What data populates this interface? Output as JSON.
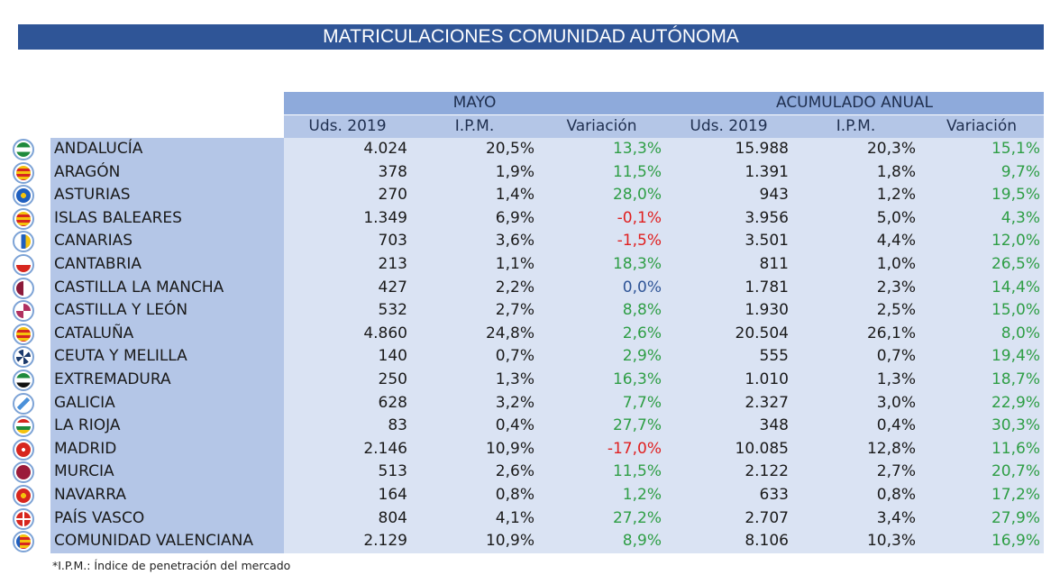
{
  "title": "MATRICULACIONES COMUNIDAD AUTÓNOMA",
  "groups": {
    "month": "MAYO",
    "annual": "ACUMULADO ANUAL"
  },
  "columns": [
    "Uds. 2019",
    "I.P.M.",
    "Variación",
    "Uds. 2019",
    "I.P.M.",
    "Variación"
  ],
  "colors": {
    "title_bg": "#2f5597",
    "positive": "#2e9e45",
    "negative": "#e02020",
    "neutral": "#2f5597"
  },
  "rows": [
    {
      "name": "ANDALUCÍA",
      "flag": "andalucia-flag-icon",
      "m_uds": "4.024",
      "m_ipm": "20,5%",
      "m_var": "13,3%",
      "a_uds": "15.988",
      "a_ipm": "20,3%",
      "a_var": "15,1%"
    },
    {
      "name": "ARAGÓN",
      "flag": "aragon-flag-icon",
      "m_uds": "378",
      "m_ipm": "1,9%",
      "m_var": "11,5%",
      "a_uds": "1.391",
      "a_ipm": "1,8%",
      "a_var": "9,7%"
    },
    {
      "name": "ASTURIAS",
      "flag": "asturias-flag-icon",
      "m_uds": "270",
      "m_ipm": "1,4%",
      "m_var": "28,0%",
      "a_uds": "943",
      "a_ipm": "1,2%",
      "a_var": "19,5%"
    },
    {
      "name": "ISLAS BALEARES",
      "flag": "baleares-flag-icon",
      "m_uds": "1.349",
      "m_ipm": "6,9%",
      "m_var": "-0,1%",
      "a_uds": "3.956",
      "a_ipm": "5,0%",
      "a_var": "4,3%"
    },
    {
      "name": "CANARIAS",
      "flag": "canarias-flag-icon",
      "m_uds": "703",
      "m_ipm": "3,6%",
      "m_var": "-1,5%",
      "a_uds": "3.501",
      "a_ipm": "4,4%",
      "a_var": "12,0%"
    },
    {
      "name": "CANTABRIA",
      "flag": "cantabria-flag-icon",
      "m_uds": "213",
      "m_ipm": "1,1%",
      "m_var": "18,3%",
      "a_uds": "811",
      "a_ipm": "1,0%",
      "a_var": "26,5%"
    },
    {
      "name": "CASTILLA LA MANCHA",
      "flag": "castilla-la-mancha-flag-icon",
      "m_uds": "427",
      "m_ipm": "2,2%",
      "m_var": "0,0%",
      "a_uds": "1.781",
      "a_ipm": "2,3%",
      "a_var": "14,4%"
    },
    {
      "name": "CASTILLA Y LEÓN",
      "flag": "castilla-y-leon-flag-icon",
      "m_uds": "532",
      "m_ipm": "2,7%",
      "m_var": "8,8%",
      "a_uds": "1.930",
      "a_ipm": "2,5%",
      "a_var": "15,0%"
    },
    {
      "name": "CATALUÑA",
      "flag": "cataluna-flag-icon",
      "m_uds": "4.860",
      "m_ipm": "24,8%",
      "m_var": "2,6%",
      "a_uds": "20.504",
      "a_ipm": "26,1%",
      "a_var": "8,0%"
    },
    {
      "name": "CEUTA Y MELILLA",
      "flag": "ceuta-melilla-flag-icon",
      "m_uds": "140",
      "m_ipm": "0,7%",
      "m_var": "2,9%",
      "a_uds": "555",
      "a_ipm": "0,7%",
      "a_var": "19,4%"
    },
    {
      "name": "EXTREMADURA",
      "flag": "extremadura-flag-icon",
      "m_uds": "250",
      "m_ipm": "1,3%",
      "m_var": "16,3%",
      "a_uds": "1.010",
      "a_ipm": "1,3%",
      "a_var": "18,7%"
    },
    {
      "name": "GALICIA",
      "flag": "galicia-flag-icon",
      "m_uds": "628",
      "m_ipm": "3,2%",
      "m_var": "7,7%",
      "a_uds": "2.327",
      "a_ipm": "3,0%",
      "a_var": "22,9%"
    },
    {
      "name": "LA RIOJA",
      "flag": "la-rioja-flag-icon",
      "m_uds": "83",
      "m_ipm": "0,4%",
      "m_var": "27,7%",
      "a_uds": "348",
      "a_ipm": "0,4%",
      "a_var": "30,3%"
    },
    {
      "name": "MADRID",
      "flag": "madrid-flag-icon",
      "m_uds": "2.146",
      "m_ipm": "10,9%",
      "m_var": "-17,0%",
      "a_uds": "10.085",
      "a_ipm": "12,8%",
      "a_var": "11,6%"
    },
    {
      "name": "MURCIA",
      "flag": "murcia-flag-icon",
      "m_uds": "513",
      "m_ipm": "2,6%",
      "m_var": "11,5%",
      "a_uds": "2.122",
      "a_ipm": "2,7%",
      "a_var": "20,7%"
    },
    {
      "name": "NAVARRA",
      "flag": "navarra-flag-icon",
      "m_uds": "164",
      "m_ipm": "0,8%",
      "m_var": "1,2%",
      "a_uds": "633",
      "a_ipm": "0,8%",
      "a_var": "17,2%"
    },
    {
      "name": "PAÍS VASCO",
      "flag": "pais-vasco-flag-icon",
      "m_uds": "804",
      "m_ipm": "4,1%",
      "m_var": "27,2%",
      "a_uds": "2.707",
      "a_ipm": "3,4%",
      "a_var": "27,9%"
    },
    {
      "name": "COMUNIDAD VALENCIANA",
      "flag": "valenciana-flag-icon",
      "m_uds": "2.129",
      "m_ipm": "10,9%",
      "m_var": "8,9%",
      "a_uds": "8.106",
      "a_ipm": "10,3%",
      "a_var": "16,9%"
    }
  ],
  "footnote": "*I.P.M.: Índice de penetración del mercado"
}
